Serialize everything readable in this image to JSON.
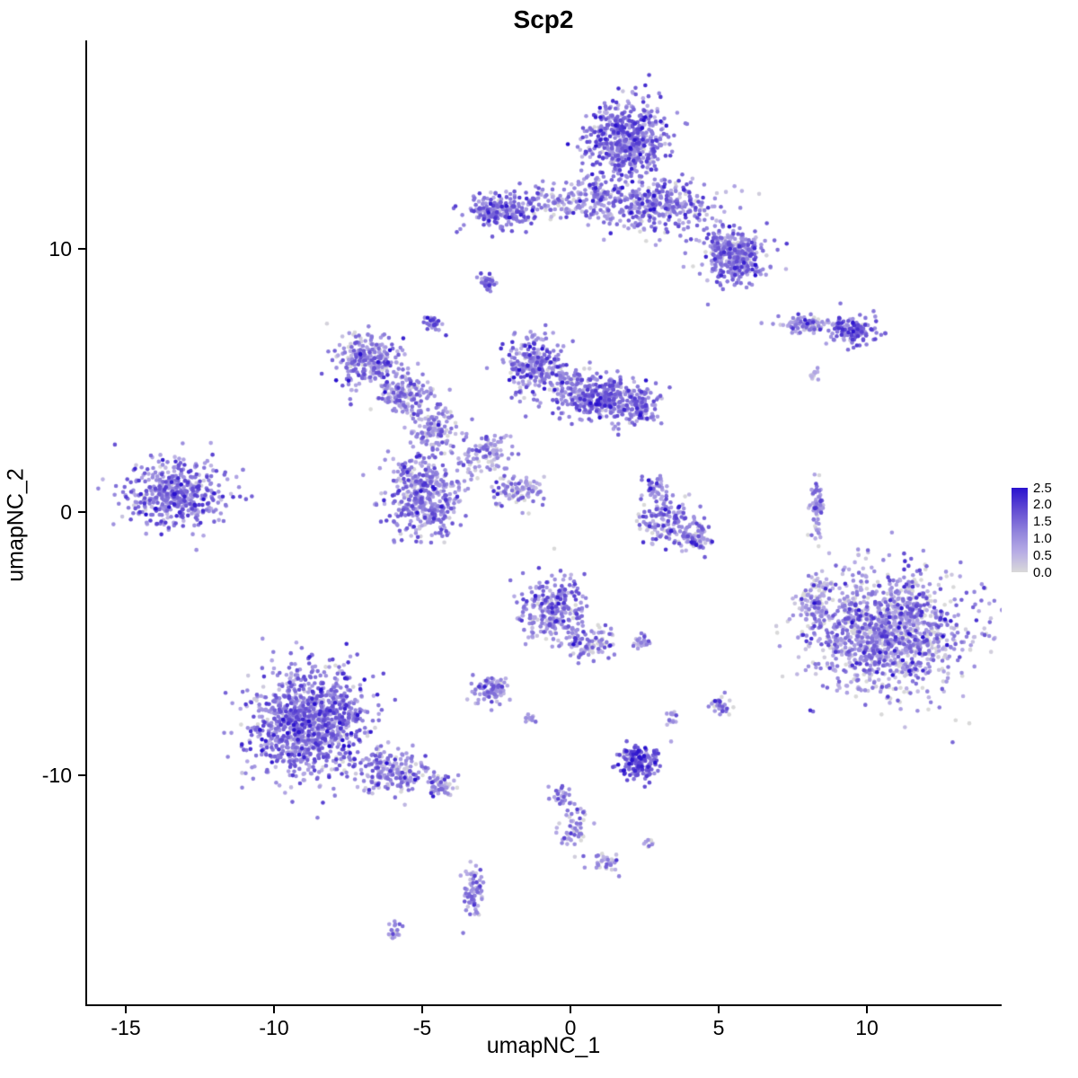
{
  "title": "Scp2",
  "chart_data": {
    "type": "scatter",
    "title": "Scp2",
    "xlabel": "umapNC_1",
    "ylabel": "umapNC_2",
    "xlim": [
      -16.4,
      14.5
    ],
    "ylim": [
      -18.8,
      17.9
    ],
    "grid": false,
    "legend_position": "right",
    "x_ticks": {
      "values": [
        -15,
        -10,
        -5,
        0,
        5,
        10
      ],
      "labels": [
        "-15",
        "-10",
        "-5",
        "0",
        "5",
        "10"
      ]
    },
    "y_ticks": {
      "values": [
        10,
        0,
        -10
      ],
      "labels": [
        "10",
        "0",
        "-10"
      ]
    },
    "legend": {
      "labels": [
        "2.5",
        "2.0",
        "1.5",
        "1.0",
        "0.5",
        "0.0"
      ],
      "min": 0.0,
      "max": 2.5
    },
    "colorscale": {
      "stops": [
        {
          "v": 0.0,
          "c": "#d9d9d9"
        },
        {
          "v": 0.6,
          "c": "#b7ace5"
        },
        {
          "v": 1.2,
          "c": "#9183dc"
        },
        {
          "v": 1.8,
          "c": "#6650d3"
        },
        {
          "v": 2.5,
          "c": "#2a12ce"
        }
      ]
    },
    "point_radius": 2.3,
    "clusters": [
      {
        "x": 1.9,
        "y": 14.1,
        "sx": 0.7,
        "sy": 0.75,
        "n": 550,
        "expr_mean": 1.3,
        "expr_sd": 0.55
      },
      {
        "x": 3.0,
        "y": 11.6,
        "sx": 1.1,
        "sy": 0.5,
        "n": 380,
        "expr_mean": 1.1,
        "expr_sd": 0.6
      },
      {
        "x": 5.6,
        "y": 9.6,
        "sx": 0.5,
        "sy": 0.45,
        "n": 220,
        "expr_mean": 1.25,
        "expr_sd": 0.55
      },
      {
        "x": 5.3,
        "y": 10.0,
        "sx": 0.5,
        "sy": 0.4,
        "n": 140,
        "expr_mean": 1.0,
        "expr_sd": 0.6
      },
      {
        "x": -2.4,
        "y": 11.4,
        "sx": 0.6,
        "sy": 0.35,
        "n": 200,
        "expr_mean": 1.2,
        "expr_sd": 0.55
      },
      {
        "x": -0.6,
        "y": 11.7,
        "sx": 0.5,
        "sy": 0.3,
        "n": 80,
        "expr_mean": 0.9,
        "expr_sd": 0.6
      },
      {
        "x": 0.8,
        "y": 12.1,
        "sx": 0.4,
        "sy": 0.35,
        "n": 90,
        "expr_mean": 1.0,
        "expr_sd": 0.6
      },
      {
        "x": -2.8,
        "y": 8.7,
        "sx": 0.15,
        "sy": 0.15,
        "n": 30,
        "expr_mean": 1.4,
        "expr_sd": 0.5
      },
      {
        "x": -4.6,
        "y": 7.2,
        "sx": 0.18,
        "sy": 0.18,
        "n": 30,
        "expr_mean": 1.2,
        "expr_sd": 0.5
      },
      {
        "x": 8.0,
        "y": 7.1,
        "sx": 0.55,
        "sy": 0.18,
        "n": 90,
        "expr_mean": 0.9,
        "expr_sd": 0.6
      },
      {
        "x": 9.6,
        "y": 6.9,
        "sx": 0.38,
        "sy": 0.25,
        "n": 130,
        "expr_mean": 1.5,
        "expr_sd": 0.5
      },
      {
        "x": 8.2,
        "y": 5.2,
        "sx": 0.1,
        "sy": 0.1,
        "n": 12,
        "expr_mean": 0.5,
        "expr_sd": 0.4
      },
      {
        "x": -6.75,
        "y": 5.7,
        "sx": 0.55,
        "sy": 0.5,
        "n": 260,
        "expr_mean": 1.0,
        "expr_sd": 0.6
      },
      {
        "x": -5.6,
        "y": 4.4,
        "sx": 0.45,
        "sy": 0.4,
        "n": 140,
        "expr_mean": 0.9,
        "expr_sd": 0.6
      },
      {
        "x": -4.6,
        "y": 3.2,
        "sx": 0.4,
        "sy": 0.4,
        "n": 120,
        "expr_mean": 0.9,
        "expr_sd": 0.6
      },
      {
        "x": -1.2,
        "y": 5.6,
        "sx": 0.5,
        "sy": 0.55,
        "n": 240,
        "expr_mean": 1.1,
        "expr_sd": 0.6
      },
      {
        "x": 1.1,
        "y": 4.3,
        "sx": 0.7,
        "sy": 0.45,
        "n": 340,
        "expr_mean": 1.3,
        "expr_sd": 0.55
      },
      {
        "x": 2.3,
        "y": 4.0,
        "sx": 0.3,
        "sy": 0.35,
        "n": 90,
        "expr_mean": 1.2,
        "expr_sd": 0.55
      },
      {
        "x": -0.2,
        "y": 4.9,
        "sx": 0.45,
        "sy": 0.35,
        "n": 80,
        "expr_mean": 0.9,
        "expr_sd": 0.6
      },
      {
        "x": -3.0,
        "y": 2.2,
        "sx": 0.45,
        "sy": 0.4,
        "n": 110,
        "expr_mean": 0.8,
        "expr_sd": 0.6
      },
      {
        "x": -5.0,
        "y": 0.6,
        "sx": 0.6,
        "sy": 0.8,
        "n": 430,
        "expr_mean": 1.1,
        "expr_sd": 0.6
      },
      {
        "x": -1.7,
        "y": 0.8,
        "sx": 0.45,
        "sy": 0.3,
        "n": 90,
        "expr_mean": 0.9,
        "expr_sd": 0.6
      },
      {
        "x": -13.3,
        "y": 0.7,
        "sx": 0.85,
        "sy": 0.65,
        "n": 480,
        "expr_mean": 1.2,
        "expr_sd": 0.55
      },
      {
        "x": 2.9,
        "y": 0.9,
        "sx": 0.2,
        "sy": 0.2,
        "n": 40,
        "expr_mean": 1.0,
        "expr_sd": 0.6
      },
      {
        "x": 3.3,
        "y": -0.3,
        "sx": 0.5,
        "sy": 0.45,
        "n": 150,
        "expr_mean": 1.0,
        "expr_sd": 0.6
      },
      {
        "x": 4.2,
        "y": -1.0,
        "sx": 0.35,
        "sy": 0.25,
        "n": 70,
        "expr_mean": 1.0,
        "expr_sd": 0.6
      },
      {
        "x": 8.3,
        "y": 0.1,
        "sx": 0.12,
        "sy": 0.6,
        "n": 70,
        "expr_mean": 0.8,
        "expr_sd": 0.6
      },
      {
        "x": 10.6,
        "y": -4.6,
        "sx": 1.3,
        "sy": 1.15,
        "n": 1300,
        "expr_mean": 0.85,
        "expr_sd": 0.7
      },
      {
        "x": 8.3,
        "y": -3.3,
        "sx": 0.25,
        "sy": 0.55,
        "n": 100,
        "expr_mean": 0.7,
        "expr_sd": 0.6
      },
      {
        "x": -0.6,
        "y": -3.6,
        "sx": 0.55,
        "sy": 0.6,
        "n": 280,
        "expr_mean": 1.1,
        "expr_sd": 0.6
      },
      {
        "x": 0.6,
        "y": -5.0,
        "sx": 0.45,
        "sy": 0.28,
        "n": 90,
        "expr_mean": 0.9,
        "expr_sd": 0.6
      },
      {
        "x": 2.4,
        "y": -4.9,
        "sx": 0.15,
        "sy": 0.12,
        "n": 25,
        "expr_mean": 0.9,
        "expr_sd": 0.5
      },
      {
        "x": -2.7,
        "y": -6.7,
        "sx": 0.3,
        "sy": 0.28,
        "n": 90,
        "expr_mean": 0.9,
        "expr_sd": 0.6
      },
      {
        "x": -1.4,
        "y": -7.8,
        "sx": 0.1,
        "sy": 0.1,
        "n": 12,
        "expr_mean": 0.7,
        "expr_sd": 0.5
      },
      {
        "x": 5.1,
        "y": -7.4,
        "sx": 0.18,
        "sy": 0.18,
        "n": 35,
        "expr_mean": 1.0,
        "expr_sd": 0.6
      },
      {
        "x": 3.4,
        "y": -7.8,
        "sx": 0.12,
        "sy": 0.12,
        "n": 15,
        "expr_mean": 0.8,
        "expr_sd": 0.5
      },
      {
        "x": -8.8,
        "y": -8.0,
        "sx": 1.0,
        "sy": 1.05,
        "n": 1100,
        "expr_mean": 1.2,
        "expr_sd": 0.6
      },
      {
        "x": -5.9,
        "y": -9.9,
        "sx": 0.6,
        "sy": 0.35,
        "n": 180,
        "expr_mean": 1.0,
        "expr_sd": 0.6
      },
      {
        "x": -4.3,
        "y": -10.4,
        "sx": 0.22,
        "sy": 0.2,
        "n": 50,
        "expr_mean": 0.9,
        "expr_sd": 0.6
      },
      {
        "x": 2.35,
        "y": -9.5,
        "sx": 0.35,
        "sy": 0.3,
        "n": 160,
        "expr_mean": 1.5,
        "expr_sd": 0.5
      },
      {
        "x": -0.3,
        "y": -10.8,
        "sx": 0.2,
        "sy": 0.2,
        "n": 30,
        "expr_mean": 0.8,
        "expr_sd": 0.6
      },
      {
        "x": 0.1,
        "y": -12.0,
        "sx": 0.28,
        "sy": 0.45,
        "n": 50,
        "expr_mean": 0.8,
        "expr_sd": 0.6
      },
      {
        "x": 1.2,
        "y": -13.3,
        "sx": 0.22,
        "sy": 0.22,
        "n": 35,
        "expr_mean": 0.8,
        "expr_sd": 0.6
      },
      {
        "x": 2.6,
        "y": -12.6,
        "sx": 0.1,
        "sy": 0.1,
        "n": 10,
        "expr_mean": 0.7,
        "expr_sd": 0.5
      },
      {
        "x": -3.3,
        "y": -14.4,
        "sx": 0.2,
        "sy": 0.45,
        "n": 70,
        "expr_mean": 1.1,
        "expr_sd": 0.55
      },
      {
        "x": -5.9,
        "y": -15.9,
        "sx": 0.15,
        "sy": 0.15,
        "n": 18,
        "expr_mean": 0.8,
        "expr_sd": 0.5
      }
    ]
  }
}
